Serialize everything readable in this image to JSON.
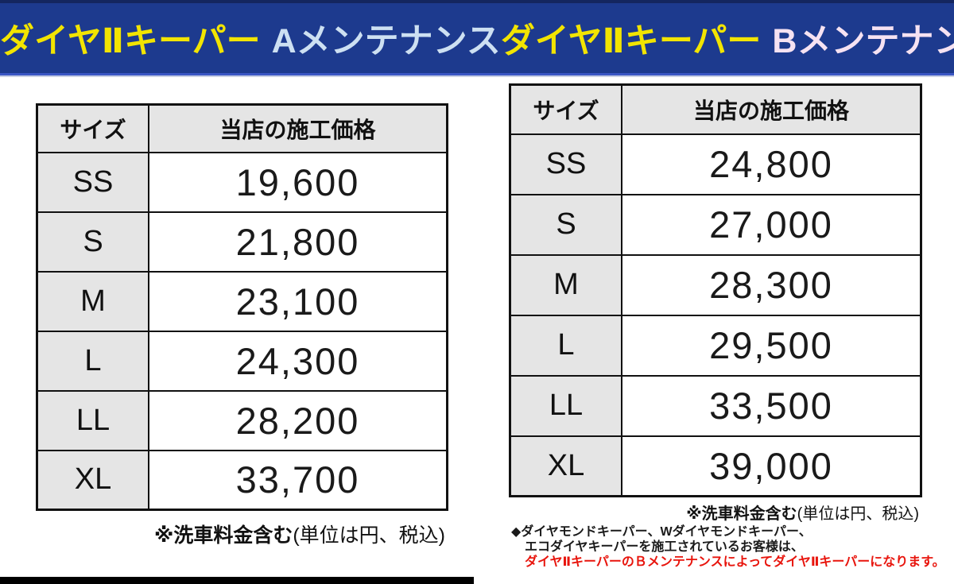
{
  "header": {
    "bar_color": "#1d3a8e",
    "brand_color": "#f2e400",
    "left": {
      "brand": "ダイヤⅡキーパー",
      "maintenance": "Aメンテナンス",
      "maintenance_color": "#cde0f2"
    },
    "right": {
      "brand": "ダイヤⅡキーパー",
      "maintenance": "Bメンテナンス",
      "maintenance_color": "#f6e2f2"
    }
  },
  "table_a": {
    "col_size": "サイズ",
    "col_price": "当店の施工価格",
    "rows": [
      {
        "size": "SS",
        "price": "19,600"
      },
      {
        "size": "S",
        "price": "21,800"
      },
      {
        "size": "M",
        "price": "23,100"
      },
      {
        "size": "L",
        "price": "24,300"
      },
      {
        "size": "LL",
        "price": "28,200"
      },
      {
        "size": "XL",
        "price": "33,700"
      }
    ],
    "footnote_bold": "※洗車料金含む",
    "footnote_normal": "(単位は円、税込)"
  },
  "table_b": {
    "col_size": "サイズ",
    "col_price": "当店の施工価格",
    "rows": [
      {
        "size": "SS",
        "price": "24,800"
      },
      {
        "size": "S",
        "price": "27,000"
      },
      {
        "size": "M",
        "price": "28,300"
      },
      {
        "size": "L",
        "price": "29,500"
      },
      {
        "size": "LL",
        "price": "33,500"
      },
      {
        "size": "XL",
        "price": "39,000"
      }
    ],
    "footnote_bold": "※洗車料金含む",
    "footnote_normal": "(単位は円、税込)"
  },
  "note": {
    "line1": "◆ダイヤモンドキーパー、Wダイヤモンドキーパー、",
    "line2": "エコダイヤキーパーを施工されているお客様は、",
    "line3": "ダイヤⅡキーパーのＢメンテナンスによってダイヤⅡキーパーになります。",
    "highlight_color": "#e8150d"
  }
}
